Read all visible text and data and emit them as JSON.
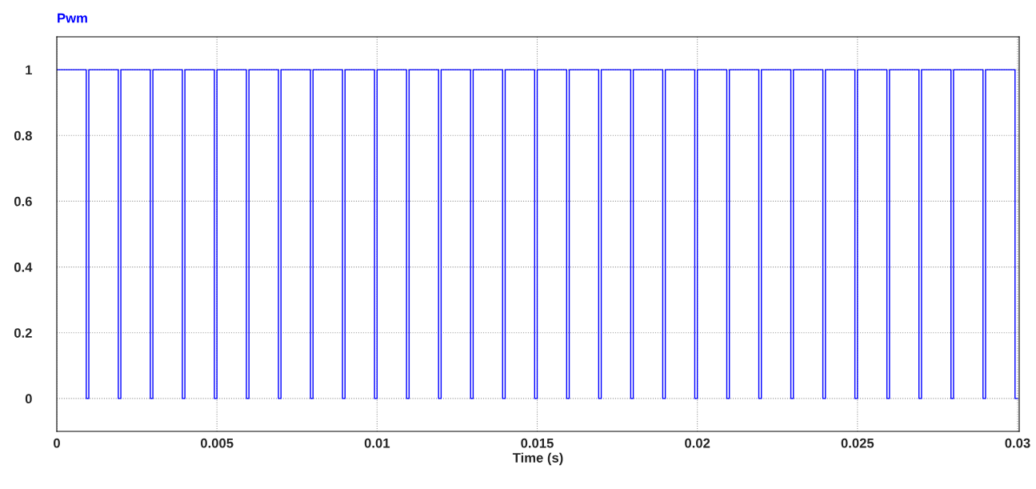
{
  "chart_data": {
    "type": "step",
    "title": "Pwm",
    "xlabel": "Time (s)",
    "x": [
      0,
      0.00092,
      0.001,
      0.00192,
      0.002,
      0.00292,
      0.003,
      0.00392,
      0.004,
      0.00492,
      0.005,
      0.00592,
      0.006,
      0.00692,
      0.007,
      0.00792,
      0.008,
      0.00892,
      0.009,
      0.00992,
      0.01,
      0.01092,
      0.011,
      0.01192,
      0.012,
      0.01292,
      0.013,
      0.01392,
      0.014,
      0.01492,
      0.015,
      0.01592,
      0.016,
      0.01692,
      0.017,
      0.01792,
      0.018,
      0.01892,
      0.019,
      0.01992,
      0.02,
      0.02092,
      0.021,
      0.02192,
      0.022,
      0.02292,
      0.023,
      0.02392,
      0.024,
      0.02492,
      0.025,
      0.02592,
      0.026,
      0.02692,
      0.027,
      0.02792,
      0.028,
      0.02892,
      0.029,
      0.02992,
      0.03
    ],
    "series": [
      {
        "color": "#0000ff",
        "values": [
          1,
          0,
          1,
          0,
          1,
          0,
          1,
          0,
          1,
          0,
          1,
          0,
          1,
          0,
          1,
          0,
          1,
          0,
          1,
          0,
          1,
          0,
          1,
          0,
          1,
          0,
          1,
          0,
          1,
          0,
          1,
          0,
          1,
          0,
          1,
          0,
          1,
          0,
          1,
          0,
          1,
          0,
          1,
          0,
          1,
          0,
          1,
          0,
          1,
          0,
          1,
          0,
          1,
          0,
          1,
          0,
          1,
          0,
          1,
          0,
          0
        ]
      }
    ],
    "xlim": [
      0,
      0.03005
    ],
    "xticks": [
      0,
      0.005,
      0.01,
      0.015,
      0.02,
      0.025,
      0.03
    ],
    "ylim": [
      -0.1,
      1.1
    ],
    "yticks": [
      0,
      0.2,
      0.4,
      0.6,
      0.8,
      1
    ],
    "grid": true,
    "legend": false
  }
}
